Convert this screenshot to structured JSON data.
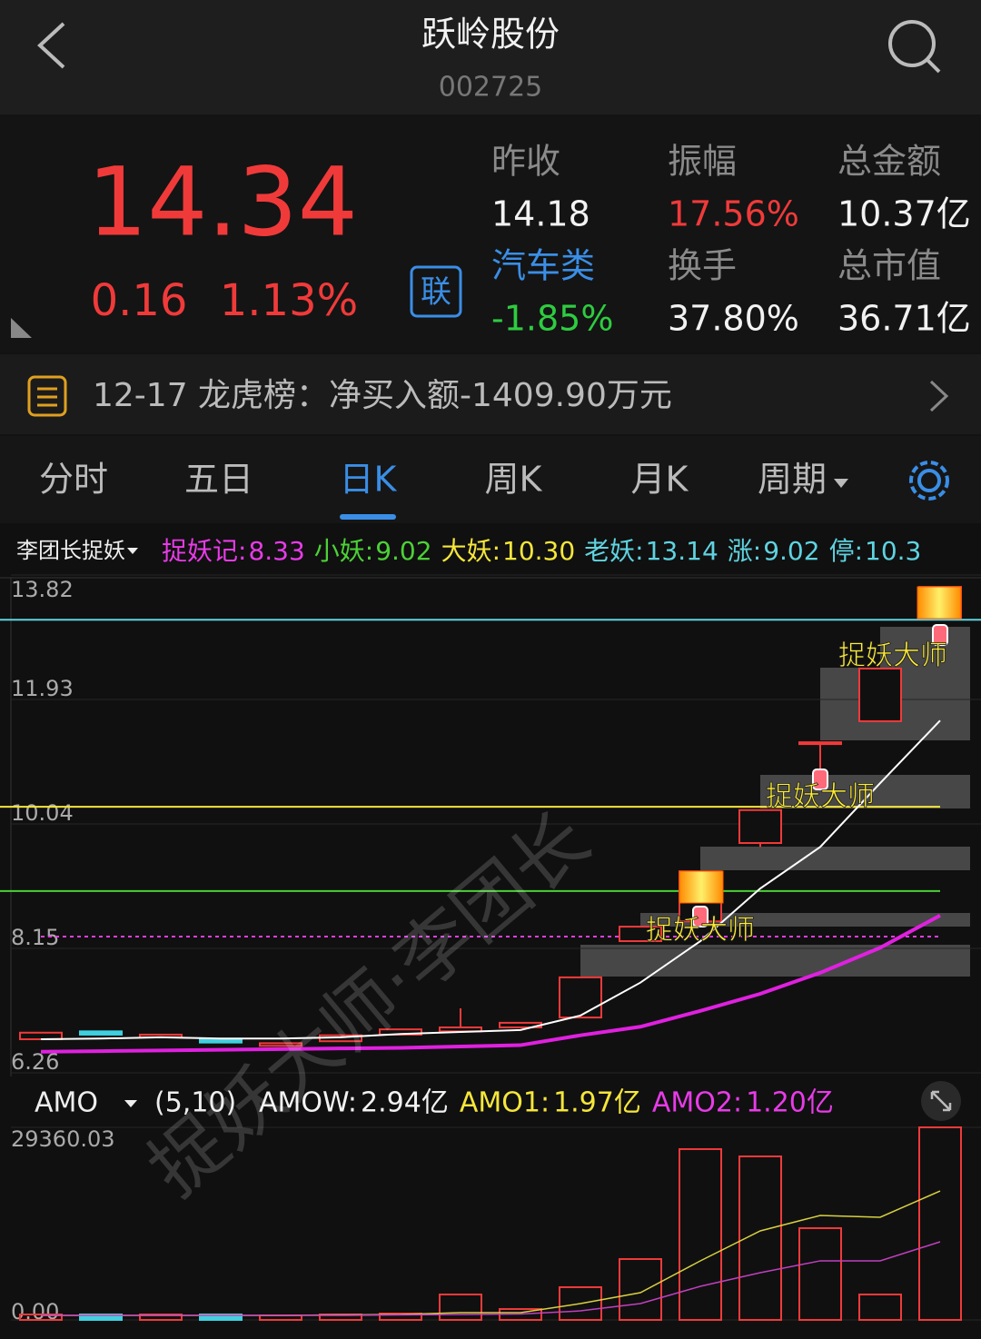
{
  "header": {
    "title": "跃岭股份",
    "code": "002725"
  },
  "quote": {
    "price": "14.34",
    "change": "0.16",
    "change_pct": "1.13%",
    "badge": "联"
  },
  "stats": [
    {
      "label": "昨收",
      "value": "14.18",
      "label_color": "#8a8a8a",
      "value_color": "#f2f2f2"
    },
    {
      "label": "振幅",
      "value": "17.56%",
      "label_color": "#8a8a8a",
      "value_color": "#f03a3a"
    },
    {
      "label": "总金额",
      "value": "10.37亿",
      "label_color": "#8a8a8a",
      "value_color": "#f2f2f2"
    },
    {
      "label": "汽车类",
      "value": "-1.85%",
      "label_color": "#3a8ee6",
      "value_color": "#2ecc40"
    },
    {
      "label": "换手",
      "value": "37.80%",
      "label_color": "#8a8a8a",
      "value_color": "#f2f2f2"
    },
    {
      "label": "总市值",
      "value": "36.71亿",
      "label_color": "#8a8a8a",
      "value_color": "#f2f2f2"
    }
  ],
  "notice": {
    "date": "12-17",
    "text": "龙虎榜：净买入额-1409.90万元"
  },
  "tabs": [
    "分时",
    "五日",
    "日K",
    "周K",
    "月K",
    "周期"
  ],
  "active_tab": 2,
  "indicator": {
    "name": "李团长捉妖",
    "items": [
      {
        "name": "捉妖记:",
        "value": "8.33",
        "color": "#e83be8",
        "line": "dashed"
      },
      {
        "name": "小妖:",
        "value": "9.02",
        "color": "#4cd137",
        "line": "solid"
      },
      {
        "name": "大妖:",
        "value": "10.30",
        "color": "#f5e63b",
        "line": "solid"
      },
      {
        "name": "老妖:",
        "value": "13.14",
        "color": "#5fd3e0",
        "line": "solid"
      },
      {
        "name": "涨:",
        "value": "9.02",
        "color": "#5fd3e0"
      },
      {
        "name": "停:",
        "value": "10.3",
        "color": "#5fd3e0"
      }
    ]
  },
  "volume_indicator": {
    "name": "AMO",
    "params": "(5,10)",
    "items": [
      {
        "name": "AMOW:",
        "value": "2.94亿",
        "color": "#f2f2f2"
      },
      {
        "name": "AMO1:",
        "value": "1.97亿",
        "color": "#f5e63b"
      },
      {
        "name": "AMO2:",
        "value": "1.20亿",
        "color": "#e83be8"
      }
    ]
  },
  "annotations": [
    "捉妖大师",
    "捉妖大师",
    "捉妖大师"
  ],
  "watermark": "捉妖大师·李团长",
  "chart_data": [
    {
      "type": "candlestick",
      "up_color": "#f03a3a",
      "down_color": "#3fd0e0",
      "open": [
        6.77,
        6.89,
        6.8,
        6.77,
        6.67,
        6.74,
        6.84,
        6.89,
        6.95,
        7.1,
        8.26,
        8.56,
        9.75,
        11.28,
        11.6,
        13.17
      ],
      "close": [
        6.87,
        6.84,
        6.84,
        6.72,
        6.71,
        6.83,
        6.92,
        6.95,
        7.02,
        7.71,
        8.48,
        9.32,
        10.25,
        11.28,
        12.4,
        13.64
      ],
      "high": [
        6.87,
        6.89,
        6.84,
        6.77,
        6.71,
        6.83,
        6.92,
        7.24,
        7.02,
        7.71,
        8.48,
        9.32,
        10.25,
        11.28,
        12.4,
        13.64
      ],
      "low": [
        6.77,
        6.84,
        6.8,
        6.72,
        6.67,
        6.74,
        6.84,
        6.89,
        6.95,
        7.1,
        8.26,
        8.56,
        9.69,
        10.71,
        11.6,
        13.17
      ],
      "lines": [
        {
          "color": "#ffffff",
          "values": [
            6.77,
            6.78,
            6.8,
            6.78,
            6.78,
            6.8,
            6.85,
            6.88,
            6.91,
            7.13,
            7.63,
            8.26,
            9.06,
            9.69,
            10.66,
            11.61
          ]
        },
        {
          "color": "#e020e0",
          "values": [
            6.58,
            6.59,
            6.6,
            6.61,
            6.62,
            6.63,
            6.64,
            6.66,
            6.68,
            6.83,
            6.96,
            7.2,
            7.46,
            7.78,
            8.16,
            8.65
          ]
        }
      ],
      "ylim": [
        6.26,
        13.82
      ],
      "yticks": [
        13.82,
        11.93,
        10.04,
        8.15,
        6.26
      ]
    },
    {
      "type": "bar",
      "values": [
        830,
        830,
        830,
        830,
        690,
        830,
        970,
        3880,
        1660,
        4990,
        9280,
        26040,
        24930,
        13990,
        3880,
        29360.03
      ],
      "lines": [
        {
          "color": "#d8d040",
          "values": [
            690,
            690,
            690,
            690,
            690,
            760,
            830,
            1110,
            1110,
            2490,
            4150,
            9000,
            13570,
            15930,
            15650,
            19660
          ]
        },
        {
          "color": "#c040c0",
          "values": [
            690,
            690,
            690,
            690,
            690,
            690,
            760,
            830,
            900,
            1380,
            2490,
            5120,
            7200,
            9010,
            9010,
            11910
          ]
        }
      ],
      "ylim": [
        0,
        29360.03
      ],
      "yticks": [
        29360.03,
        {
          "value": 0,
          "label": "0.00"
        }
      ]
    }
  ]
}
